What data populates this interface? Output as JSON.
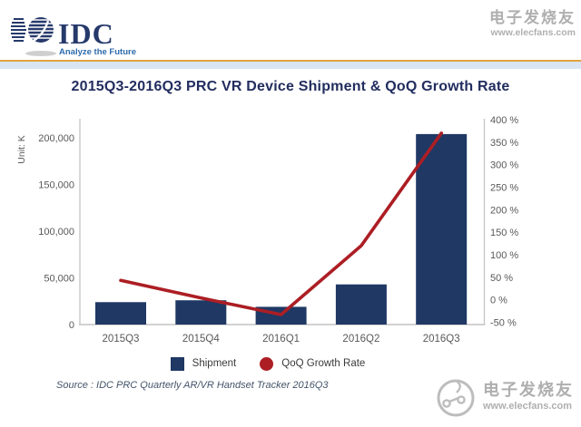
{
  "header": {
    "logo": {
      "text": "IDC",
      "tagline": "Analyze the Future"
    },
    "accent_gold": "#E2A33F",
    "accent_blue_band": "#D9E5F3"
  },
  "title": "2015Q3-2016Q3 PRC VR Device Shipment & QoQ Growth Rate",
  "chart_data": {
    "type": "bar+line combo",
    "title": "2015Q3-2016Q3 PRC VR Device Shipment & QoQ Growth Rate",
    "categories": [
      "2015Q3",
      "2015Q4",
      "2016Q1",
      "2016Q2",
      "2016Q3"
    ],
    "series": [
      {
        "name": "Shipment",
        "type": "bar",
        "axis": "left",
        "color": "#1F3864",
        "values": [
          24000,
          26000,
          19000,
          43000,
          204000
        ]
      },
      {
        "name": "QoQ Growth Rate",
        "type": "line",
        "axis": "right",
        "color": "#AC1E24",
        "values": [
          43,
          4,
          -33,
          120,
          370
        ]
      }
    ],
    "left_axis": {
      "label": "Unit: K",
      "ticks": [
        0,
        50000,
        100000,
        150000,
        200000
      ],
      "tick_labels": [
        "0",
        "50,000",
        "100,000",
        "150,000",
        "200,000"
      ],
      "min": 0,
      "max": 218000
    },
    "right_axis": {
      "unit": "%",
      "ticks": [
        400,
        350,
        300,
        250,
        200,
        150,
        100,
        50,
        0,
        -50
      ],
      "tick_labels": [
        "400 %",
        "350 %",
        "300 %",
        "250 %",
        "200 %",
        "150 %",
        "100 %",
        "50 %",
        "0 %",
        "-50 %"
      ],
      "min": -50,
      "max": 400
    },
    "grid": "off",
    "legend_position": "bottom",
    "legend": [
      {
        "label": "Shipment",
        "color": "#1F3864",
        "shape": "square"
      },
      {
        "label": "QoQ Growth Rate",
        "color": "#AC1E24",
        "shape": "circle"
      }
    ]
  },
  "source": "Source : IDC PRC Quarterly AR/VR Handset Tracker 2016Q3",
  "watermark_top": {
    "line1": "电子发烧友",
    "line2": "www.elecfans.com"
  },
  "watermark_bottom": {
    "line1": "电子发烧友",
    "line2": "www.elecfans.com"
  }
}
